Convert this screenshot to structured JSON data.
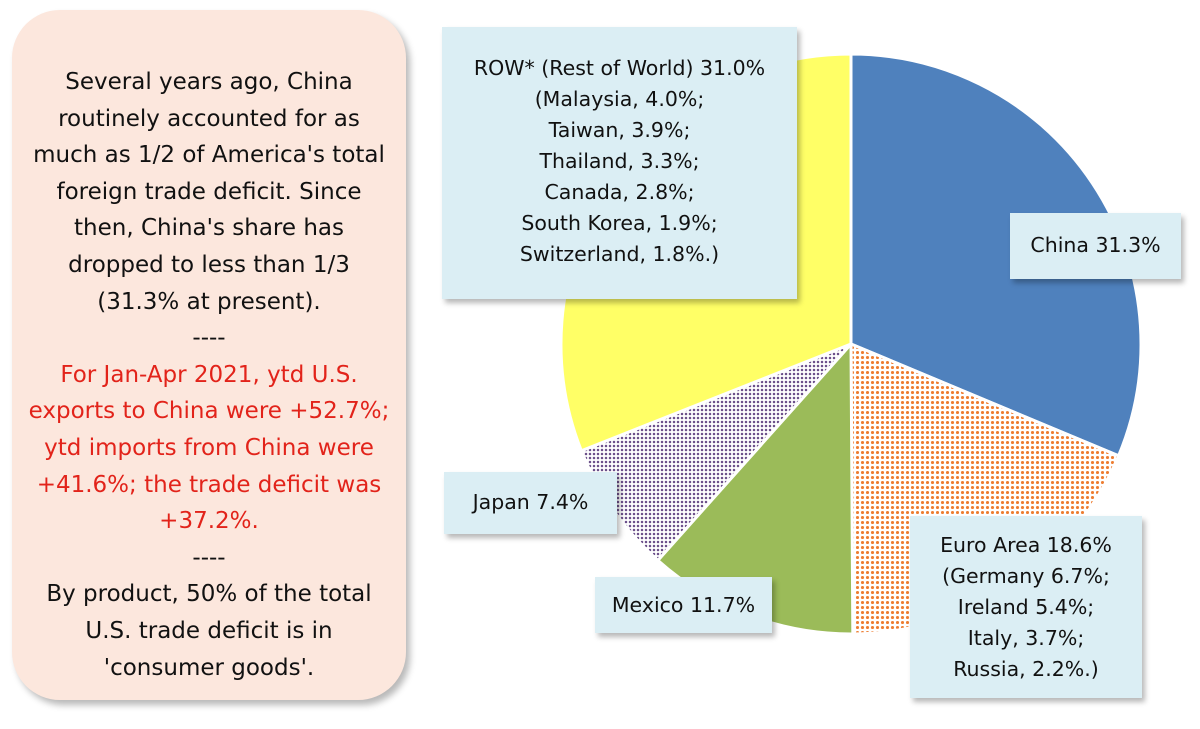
{
  "note": {
    "paragraph_1": "Several years ago, China routinely accounted for as much as 1/2 of America's total foreign trade deficit. Since then, China's share has dropped to less than 1/3 (31.3% at present).",
    "separator_1": "----",
    "paragraph_2": "For Jan-Apr 2021, ytd U.S. exports to China were +52.7%; ytd imports from China were +41.6%; the trade deficit was +37.2%.",
    "separator_2": "----",
    "paragraph_3": "By product, 50% of the total U.S. trade deficit is in 'consumer goods'.",
    "highlight_color": "#e2231a"
  },
  "chart_data": {
    "type": "pie",
    "start": "12 o'clock, clockwise",
    "slices": [
      {
        "label": "China",
        "value": 31.3,
        "color": "#4f81bd",
        "pattern": "solid"
      },
      {
        "label": "Euro Area",
        "value": 18.6,
        "color": "#ee7d31",
        "pattern": "dotted"
      },
      {
        "label": "Mexico",
        "value": 11.7,
        "color": "#9bbb59",
        "pattern": "solid"
      },
      {
        "label": "Japan",
        "value": 7.4,
        "color": "#7b5c9a",
        "pattern": "dotted"
      },
      {
        "label": "ROW* (Rest of World)",
        "value": 31.0,
        "color": "#ffff66",
        "pattern": "solid"
      }
    ],
    "callouts": {
      "row": [
        "ROW* (Rest of World) 31.0%",
        "(Malaysia, 4.0%;",
        "Taiwan, 3.9%;",
        "Thailand, 3.3%;",
        "Canada, 2.8%;",
        "South Korea, 1.9%;",
        "Switzerland, 1.8%.)"
      ],
      "china": [
        "China 31.3%"
      ],
      "euro": [
        "Euro Area 18.6%",
        "(Germany 6.7%;",
        "Ireland 5.4%;",
        "Italy, 3.7%;",
        "Russia, 2.2%.)"
      ],
      "mexico": [
        "Mexico 11.7%"
      ],
      "japan": [
        "Japan 7.4%"
      ]
    },
    "title": "",
    "legend": "none (callout labels)"
  }
}
